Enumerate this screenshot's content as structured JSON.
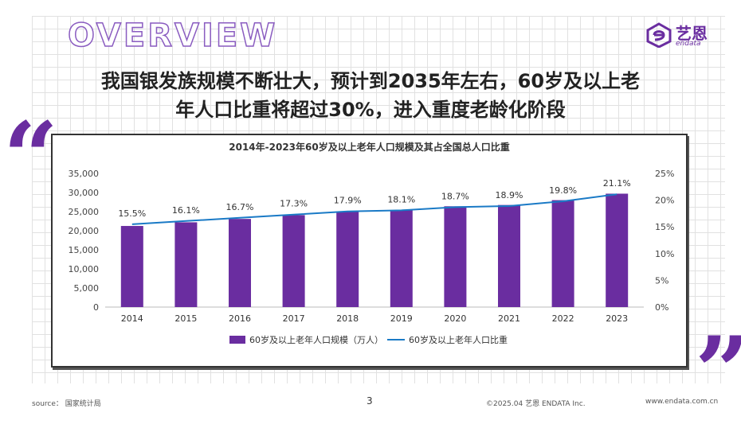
{
  "header": {
    "overview": "OVERVIEW",
    "brand_cn": "艺恩",
    "brand_en": "endata"
  },
  "headline": {
    "line1": "我国银发族规模不断壮大，预计到2035年左右，60岁及以上老",
    "line2": "年人口比重将超过30%，进入重度老龄化阶段"
  },
  "quotes": {
    "open": "“",
    "close": "”"
  },
  "colors": {
    "bar": "#6a2da0",
    "line": "#1a7ac6",
    "accent": "#6a2da0"
  },
  "chart_data": {
    "type": "bar",
    "title": "2014年-2023年60岁及以上老年人口规模及其占全国总人口比重",
    "categories": [
      "2014",
      "2015",
      "2016",
      "2017",
      "2018",
      "2019",
      "2020",
      "2021",
      "2022",
      "2023"
    ],
    "series": [
      {
        "name": "60岁及以上老年人口规模（万人）",
        "type": "bar",
        "axis": "left",
        "values": [
          21242,
          22200,
          23086,
          24090,
          24949,
          25388,
          26402,
          26736,
          28004,
          29697
        ]
      },
      {
        "name": "60岁及以上老年人口比重",
        "type": "line",
        "axis": "right",
        "values": [
          15.5,
          16.1,
          16.7,
          17.3,
          17.9,
          18.1,
          18.7,
          18.9,
          19.8,
          21.1
        ],
        "labels": [
          "15.5%",
          "16.1%",
          "16.7%",
          "17.3%",
          "17.9%",
          "18.1%",
          "18.7%",
          "18.9%",
          "19.8%",
          "21.1%"
        ]
      }
    ],
    "ylim": [
      0,
      35000
    ],
    "y2lim": [
      0,
      25
    ],
    "yticks": [
      "0",
      "5,000",
      "10,000",
      "15,000",
      "20,000",
      "25,000",
      "30,000",
      "35,000"
    ],
    "y2ticks": [
      "0%",
      "5%",
      "10%",
      "15%",
      "20%",
      "25%"
    ],
    "grid": true,
    "legend_position": "bottom"
  },
  "footer": {
    "source": "source： 国家统计局",
    "page": "3",
    "copyright": "©2025.04  艺恩  ENDATA Inc.",
    "url": "www.endata.com.cn"
  }
}
